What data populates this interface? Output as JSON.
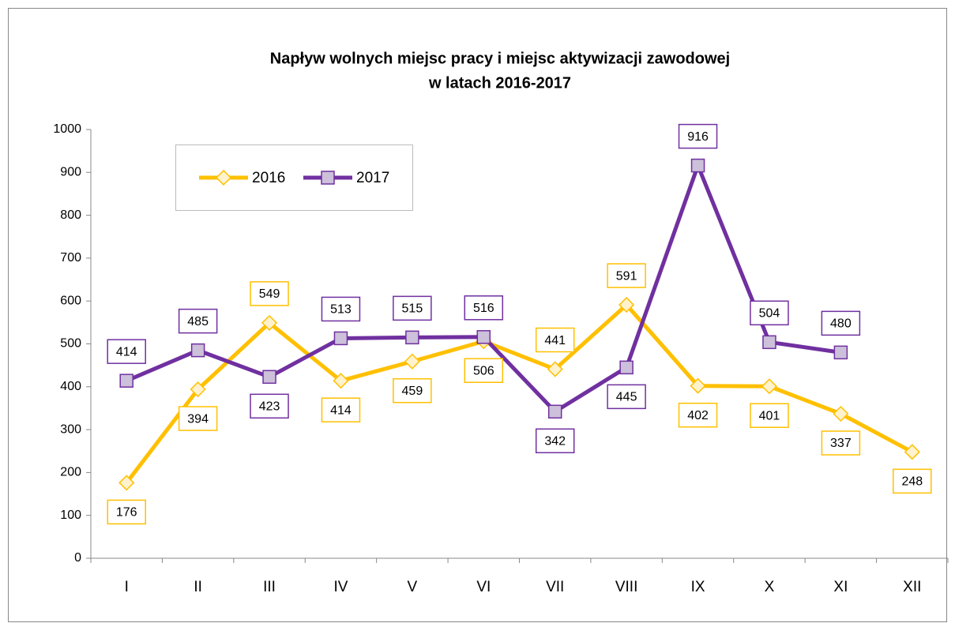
{
  "chart_data": {
    "type": "line",
    "title": [
      "Napływ wolnych miejsc pracy i miejsc aktywizacji zawodowej",
      "w latach 2016-2017"
    ],
    "categories": [
      "I",
      "II",
      "III",
      "IV",
      "V",
      "VI",
      "VII",
      "VIII",
      "IX",
      "X",
      "XI",
      "XII"
    ],
    "series": [
      {
        "name": "2016",
        "color": "#FFC000",
        "marker_fill": "#FFF2CC",
        "marker": "diamond",
        "values": [
          176,
          394,
          549,
          414,
          459,
          506,
          441,
          591,
          402,
          401,
          337,
          248
        ]
      },
      {
        "name": "2017",
        "color": "#7030A0",
        "marker_fill": "#CCC0DA",
        "marker": "square",
        "values": [
          414,
          485,
          423,
          513,
          515,
          516,
          342,
          445,
          916,
          504,
          480,
          null
        ]
      }
    ],
    "ylim": [
      0,
      1000
    ],
    "yticks": [
      0,
      100,
      200,
      300,
      400,
      500,
      600,
      700,
      800,
      900,
      1000
    ],
    "grid": false,
    "legend": "upper left"
  }
}
